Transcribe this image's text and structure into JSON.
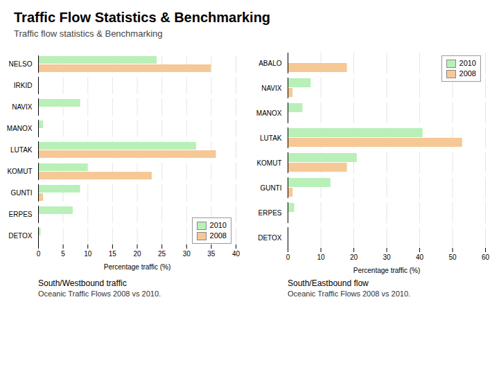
{
  "title": "Traffic Flow Statistics & Benchmarking",
  "subtitle": "Traffic flow statistics & Benchmarking",
  "chart_data": [
    {
      "type": "bar",
      "orientation": "horizontal",
      "title": "South/Westbound traffic",
      "subtitle": "Oceanic Traffic Flows 2008 vs 2010.",
      "categories": [
        "NELSO",
        "IRKID",
        "NAVIX",
        "MANOX",
        "LUTAK",
        "KOMUT",
        "GUNTI",
        "ERPES",
        "DETOX"
      ],
      "series": [
        {
          "name": "2010",
          "color": "#b8f0b8",
          "values": [
            24,
            0,
            8.5,
            1,
            32,
            10,
            8.5,
            7,
            0.5
          ]
        },
        {
          "name": "2008",
          "color": "#f5c895",
          "values": [
            35,
            0,
            0,
            0,
            36,
            23,
            1,
            0,
            0
          ]
        }
      ],
      "xlabel": "Percentage traffic (%)",
      "xlim": [
        0,
        40
      ],
      "xticks": [
        0,
        5,
        10,
        15,
        20,
        25,
        30,
        35,
        40
      ],
      "grid": true,
      "legend": "lower right"
    },
    {
      "type": "bar",
      "orientation": "horizontal",
      "title": "South/Eastbound flow",
      "subtitle": "Oceanic Traffic Flows 2008 vs 2010.",
      "categories": [
        "ABALO",
        "NAVIX",
        "MANOX",
        "LUTAK",
        "KOMUT",
        "GUNTI",
        "ERPES",
        "DETOX"
      ],
      "series": [
        {
          "name": "2010",
          "color": "#b8f0b8",
          "values": [
            0,
            7,
            4.5,
            41,
            21,
            13,
            2,
            0
          ]
        },
        {
          "name": "2008",
          "color": "#f5c895",
          "values": [
            18,
            1.5,
            0,
            53,
            18,
            1.5,
            0,
            0
          ]
        }
      ],
      "xlabel": "Percentage traffic (%)",
      "xlim": [
        0,
        60
      ],
      "xticks": [
        0,
        10,
        20,
        30,
        40,
        50,
        60
      ],
      "grid": true,
      "legend": "upper right"
    }
  ]
}
